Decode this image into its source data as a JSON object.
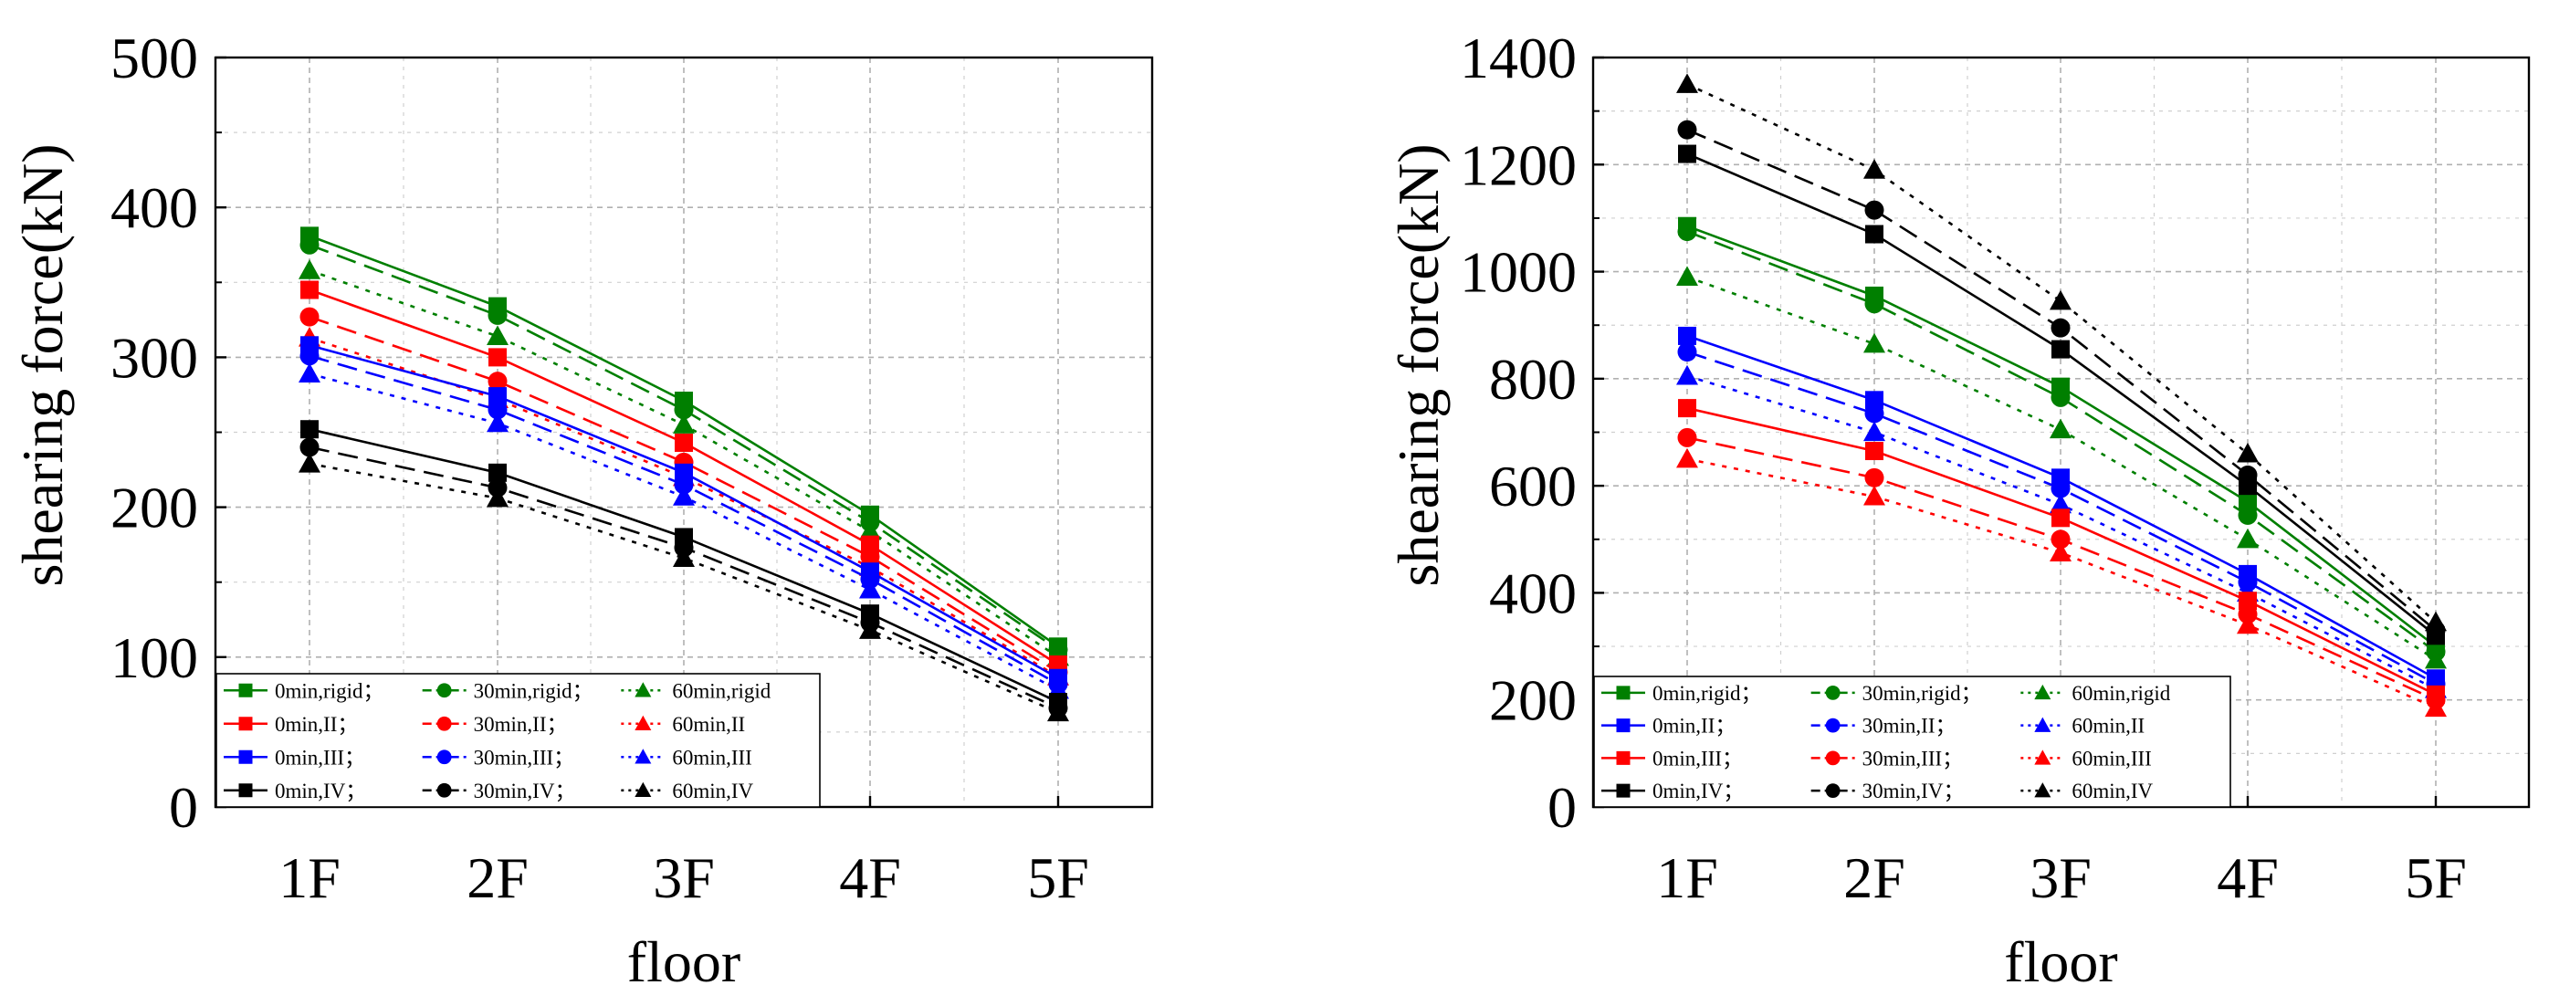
{
  "chart_data": [
    {
      "type": "line",
      "title": "",
      "xlabel": "floor",
      "ylabel": "shearing force(kN)",
      "categories": [
        "1F",
        "2F",
        "3F",
        "4F",
        "5F"
      ],
      "ylim": [
        0,
        500
      ],
      "yticks": [
        0,
        100,
        200,
        300,
        400,
        500
      ],
      "ytick_labels": [
        "0",
        "100",
        "200",
        "300",
        "400",
        "500"
      ],
      "grid": true,
      "legend_location": "bottom-left",
      "legend_columns": 3,
      "series": [
        {
          "name": "0min,rigid",
          "legend_label": "0min,rigid；",
          "color": "#007f00",
          "dash": "solid",
          "marker": "square",
          "values": [
            381,
            334,
            271,
            195,
            107
          ]
        },
        {
          "name": "30min,rigid",
          "legend_label": "30min,rigid；",
          "color": "#007f00",
          "dash": "dash",
          "marker": "circle",
          "values": [
            375,
            328,
            265,
            190,
            105
          ]
        },
        {
          "name": "60min,rigid",
          "legend_label": "60min,rigid",
          "color": "#007f00",
          "dash": "dot",
          "marker": "triangle",
          "values": [
            358,
            314,
            255,
            184,
            100
          ]
        },
        {
          "name": "0min,II",
          "legend_label": "0min,II；",
          "color": "#ff0000",
          "dash": "solid",
          "marker": "square",
          "values": [
            345,
            300,
            243,
            175,
            95
          ]
        },
        {
          "name": "30min,II",
          "legend_label": "30min,II；",
          "color": "#ff0000",
          "dash": "dash",
          "marker": "circle",
          "values": [
            327,
            284,
            230,
            167,
            90
          ]
        },
        {
          "name": "60min,II",
          "legend_label": "60min,II",
          "color": "#ff0000",
          "dash": "dot",
          "marker": "triangle",
          "values": [
            313,
            272,
            220,
            160,
            87
          ]
        },
        {
          "name": "0min,III",
          "legend_label": "0min,III；",
          "color": "#0000ff",
          "dash": "solid",
          "marker": "square",
          "values": [
            308,
            274,
            223,
            157,
            86
          ]
        },
        {
          "name": "30min,III",
          "legend_label": "30min,III；",
          "color": "#0000ff",
          "dash": "dash",
          "marker": "circle",
          "values": [
            301,
            265,
            215,
            152,
            82
          ]
        },
        {
          "name": "60min,III",
          "legend_label": "60min,III",
          "color": "#0000ff",
          "dash": "dot",
          "marker": "triangle",
          "values": [
            289,
            256,
            207,
            145,
            78
          ]
        },
        {
          "name": "0min,IV",
          "legend_label": "0min,IV；",
          "color": "#000000",
          "dash": "solid",
          "marker": "square",
          "values": [
            252,
            223,
            180,
            129,
            70
          ]
        },
        {
          "name": "30min,IV",
          "legend_label": "30min,IV；",
          "color": "#000000",
          "dash": "dash",
          "marker": "circle",
          "values": [
            240,
            213,
            173,
            123,
            66
          ]
        },
        {
          "name": "60min,IV",
          "legend_label": "60min,IV",
          "color": "#000000",
          "dash": "dot",
          "marker": "triangle",
          "values": [
            229,
            206,
            166,
            118,
            63
          ]
        }
      ]
    },
    {
      "type": "line",
      "title": "",
      "xlabel": "floor",
      "ylabel": "shearing force(kN)",
      "categories": [
        "1F",
        "2F",
        "3F",
        "4F",
        "5F"
      ],
      "ylim": [
        0,
        1400
      ],
      "yticks": [
        0,
        200,
        400,
        600,
        800,
        1000,
        1200,
        1400
      ],
      "ytick_labels": [
        "0",
        "200",
        "400",
        "600",
        "800",
        "1000",
        "1200",
        "1400"
      ],
      "grid": true,
      "legend_location": "bottom-left",
      "legend_columns": 3,
      "series": [
        {
          "name": "0min,rigid",
          "legend_label": "0min,rigid；",
          "color": "#007f00",
          "dash": "solid",
          "marker": "square",
          "values": [
            1085,
            955,
            785,
            570,
            300
          ]
        },
        {
          "name": "30min,rigid",
          "legend_label": "30min,rigid；",
          "color": "#007f00",
          "dash": "dash",
          "marker": "circle",
          "values": [
            1075,
            940,
            765,
            545,
            290
          ]
        },
        {
          "name": "60min,rigid",
          "legend_label": "60min,rigid",
          "color": "#007f00",
          "dash": "dot",
          "marker": "triangle",
          "values": [
            990,
            865,
            705,
            500,
            275
          ]
        },
        {
          "name": "0min,II",
          "legend_label": "0min,II；",
          "color": "#0000ff",
          "dash": "solid",
          "marker": "square",
          "values": [
            880,
            760,
            615,
            435,
            240
          ]
        },
        {
          "name": "30min,II",
          "legend_label": "30min,II；",
          "color": "#0000ff",
          "dash": "dash",
          "marker": "circle",
          "values": [
            850,
            735,
            595,
            420,
            230
          ]
        },
        {
          "name": "60min,II",
          "legend_label": "60min,II",
          "color": "#0000ff",
          "dash": "dot",
          "marker": "triangle",
          "values": [
            805,
            700,
            565,
            400,
            220
          ]
        },
        {
          "name": "0min,III",
          "legend_label": "0min,III；",
          "color": "#ff0000",
          "dash": "solid",
          "marker": "square",
          "values": [
            745,
            665,
            540,
            385,
            210
          ]
        },
        {
          "name": "30min,III",
          "legend_label": "30min,III；",
          "color": "#ff0000",
          "dash": "dash",
          "marker": "circle",
          "values": [
            690,
            615,
            500,
            360,
            200
          ]
        },
        {
          "name": "60min,III",
          "legend_label": "60min,III",
          "color": "#ff0000",
          "dash": "dot",
          "marker": "triangle",
          "values": [
            650,
            580,
            475,
            340,
            185
          ]
        },
        {
          "name": "0min,IV",
          "legend_label": "0min,IV；",
          "color": "#000000",
          "dash": "solid",
          "marker": "square",
          "values": [
            1220,
            1070,
            855,
            600,
            320
          ]
        },
        {
          "name": "30min,IV",
          "legend_label": "30min,IV；",
          "color": "#000000",
          "dash": "dash",
          "marker": "circle",
          "values": [
            1265,
            1115,
            895,
            620,
            330
          ]
        },
        {
          "name": "60min,IV",
          "legend_label": "60min,IV",
          "color": "#000000",
          "dash": "dot",
          "marker": "triangle",
          "values": [
            1350,
            1190,
            945,
            660,
            345
          ]
        }
      ]
    }
  ]
}
